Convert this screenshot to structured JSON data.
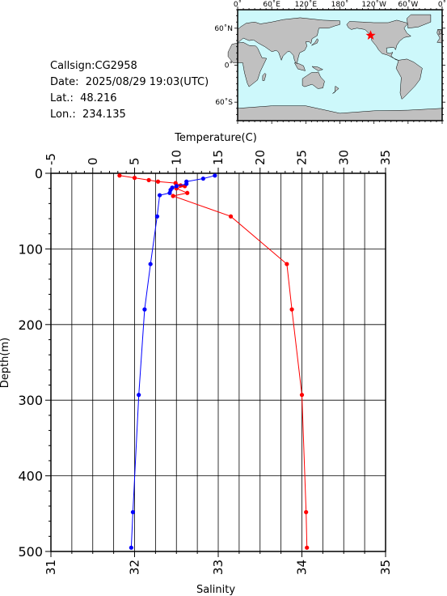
{
  "info": {
    "callsign": "Callsign:CG2958",
    "date": "Date:  2025/08/29 19:03(UTC)",
    "lat": "Lat.:  48.216",
    "lon": "Lon.:  234.135"
  },
  "map": {
    "lon_labels": [
      "0˚",
      "60˚E",
      "120˚E",
      "180˚",
      "120˚W",
      "60˚W",
      "0˚"
    ],
    "lat_labels": [
      "60˚N",
      "0˚",
      "60˚S"
    ],
    "marker_lon": 234.135,
    "marker_lat": 48.216,
    "ocean_color": "#cdf8fb",
    "land_color": "#c0c0c0",
    "marker_color": "#ff0000"
  },
  "chart_data": {
    "type": "line",
    "top_axis_label": "Temperature(C)",
    "bottom_axis_label": "Salinity",
    "ylabel": "Depth(m)",
    "temperature_ticks": [
      "-5",
      "0",
      "5",
      "10",
      "15",
      "20",
      "25",
      "30",
      "35"
    ],
    "salinity_ticks": [
      "31",
      "32",
      "33",
      "34",
      "35"
    ],
    "depth_ticks": [
      "0",
      "100",
      "200",
      "300",
      "400",
      "500"
    ],
    "temperature_range": [
      -5,
      35
    ],
    "salinity_range": [
      31,
      35
    ],
    "depth_range": [
      0,
      500
    ],
    "temperature": {
      "color": "#ff0000",
      "points": [
        {
          "depth": 3,
          "value": 3.2
        },
        {
          "depth": 6,
          "value": 5.0
        },
        {
          "depth": 9,
          "value": 6.7
        },
        {
          "depth": 11,
          "value": 7.8
        },
        {
          "depth": 13,
          "value": 9.9
        },
        {
          "depth": 16,
          "value": 10.5
        },
        {
          "depth": 17,
          "value": 11.0
        },
        {
          "depth": 20,
          "value": 10.0
        },
        {
          "depth": 26,
          "value": 11.3
        },
        {
          "depth": 30,
          "value": 9.6
        },
        {
          "depth": 57,
          "value": 16.5
        },
        {
          "depth": 120,
          "value": 23.2
        },
        {
          "depth": 180,
          "value": 23.8
        },
        {
          "depth": 293,
          "value": 25.0
        },
        {
          "depth": 448,
          "value": 25.5
        },
        {
          "depth": 495,
          "value": 25.6
        }
      ]
    },
    "salinity": {
      "color": "#0000ff",
      "points": [
        {
          "depth": 3,
          "value": 32.96
        },
        {
          "depth": 7,
          "value": 32.82
        },
        {
          "depth": 11,
          "value": 32.62
        },
        {
          "depth": 14,
          "value": 32.62
        },
        {
          "depth": 17,
          "value": 32.5
        },
        {
          "depth": 19,
          "value": 32.45
        },
        {
          "depth": 22,
          "value": 32.43
        },
        {
          "depth": 26,
          "value": 32.42
        },
        {
          "depth": 29,
          "value": 32.3
        },
        {
          "depth": 57,
          "value": 32.27
        },
        {
          "depth": 120,
          "value": 32.19
        },
        {
          "depth": 180,
          "value": 32.12
        },
        {
          "depth": 293,
          "value": 32.05
        },
        {
          "depth": 448,
          "value": 31.98
        },
        {
          "depth": 495,
          "value": 31.96
        }
      ]
    }
  }
}
